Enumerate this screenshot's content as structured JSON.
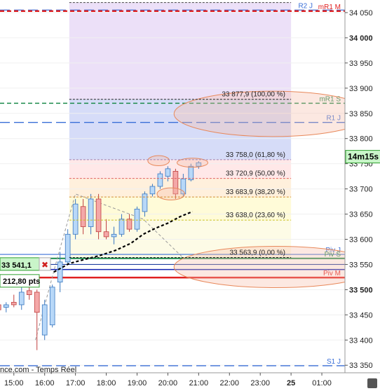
{
  "chart_data": {
    "type": "candlestick",
    "ylim": [
      33335,
      34075
    ],
    "y_ticks": [
      "34 050",
      "34 000",
      "33 950",
      "33 900",
      "33 850",
      "33 800",
      "33 750",
      "33 700",
      "33 650",
      "33 600",
      "33 550",
      "33 500",
      "33 450",
      "33 400",
      "33 350"
    ],
    "y_tick_values": [
      34050,
      34000,
      33950,
      33900,
      33850,
      33800,
      33750,
      33700,
      33650,
      33600,
      33550,
      33500,
      33450,
      33400,
      33350
    ],
    "x_ticks": [
      "15:00",
      "16:00",
      "17:00",
      "18:00",
      "19:00",
      "20:00",
      "21:00",
      "22:00",
      "23:00",
      "25",
      "01:00"
    ],
    "x_tick_values": [
      15,
      16,
      17,
      18,
      19,
      20,
      21,
      22,
      23,
      24,
      25
    ],
    "x_range": [
      14.55,
      25.75
    ],
    "candles": [
      {
        "t": 14.5,
        "o": 33470,
        "h": 33490,
        "l": 33445,
        "c": 33460
      },
      {
        "t": 14.75,
        "o": 33465,
        "h": 33475,
        "l": 33455,
        "c": 33470
      },
      {
        "t": 15.0,
        "o": 33475,
        "h": 33490,
        "l": 33465,
        "c": 33470
      },
      {
        "t": 15.25,
        "o": 33470,
        "h": 33505,
        "l": 33460,
        "c": 33495
      },
      {
        "t": 15.5,
        "o": 33498,
        "h": 33510,
        "l": 33480,
        "c": 33490
      },
      {
        "t": 15.75,
        "o": 33495,
        "h": 33500,
        "l": 33380,
        "c": 33455
      },
      {
        "t": 16.0,
        "o": 33410,
        "h": 33480,
        "l": 33400,
        "c": 33470
      },
      {
        "t": 16.25,
        "o": 33430,
        "h": 33510,
        "l": 33425,
        "c": 33505
      },
      {
        "t": 16.5,
        "o": 33515,
        "h": 33575,
        "l": 33495,
        "c": 33555
      },
      {
        "t": 16.75,
        "o": 33555,
        "h": 33620,
        "l": 33550,
        "c": 33610
      },
      {
        "t": 17.0,
        "o": 33610,
        "h": 33680,
        "l": 33600,
        "c": 33670
      },
      {
        "t": 17.25,
        "o": 33665,
        "h": 33680,
        "l": 33610,
        "c": 33625
      },
      {
        "t": 17.5,
        "o": 33625,
        "h": 33690,
        "l": 33610,
        "c": 33680
      },
      {
        "t": 17.75,
        "o": 33680,
        "h": 33690,
        "l": 33600,
        "c": 33615
      },
      {
        "t": 18.0,
        "o": 33615,
        "h": 33640,
        "l": 33600,
        "c": 33605
      },
      {
        "t": 18.25,
        "o": 33605,
        "h": 33625,
        "l": 33590,
        "c": 33610
      },
      {
        "t": 18.5,
        "o": 33610,
        "h": 33650,
        "l": 33605,
        "c": 33640
      },
      {
        "t": 18.75,
        "o": 33640,
        "h": 33650,
        "l": 33615,
        "c": 33620
      },
      {
        "t": 19.0,
        "o": 33620,
        "h": 33665,
        "l": 33615,
        "c": 33660
      },
      {
        "t": 19.25,
        "o": 33655,
        "h": 33695,
        "l": 33645,
        "c": 33690
      },
      {
        "t": 19.5,
        "o": 33690,
        "h": 33710,
        "l": 33685,
        "c": 33705
      },
      {
        "t": 19.75,
        "o": 33705,
        "h": 33735,
        "l": 33700,
        "c": 33730
      },
      {
        "t": 20.0,
        "o": 33725,
        "h": 33745,
        "l": 33715,
        "c": 33740
      },
      {
        "t": 20.25,
        "o": 33735,
        "h": 33740,
        "l": 33680,
        "c": 33690
      },
      {
        "t": 20.5,
        "o": 33690,
        "h": 33730,
        "l": 33685,
        "c": 33720
      },
      {
        "t": 20.75,
        "o": 33718,
        "h": 33750,
        "l": 33715,
        "c": 33745
      },
      {
        "t": 21.0,
        "o": 33745,
        "h": 33755,
        "l": 33740,
        "c": 33752
      }
    ],
    "fib_zone": {
      "t_start": 16.8,
      "t_end": 24.0
    },
    "fib_levels": [
      {
        "label": "33 877,9 (100,00 %)",
        "value": 33877.9,
        "color": "#222222",
        "fill": "#d6dcf8"
      },
      {
        "label": "33 758,0 (61,80 %)",
        "value": 33758.0,
        "color": "#a080b0",
        "fill": "#ffe8e8"
      },
      {
        "label": "33 720,9 (50,00 %)",
        "value": 33720.9,
        "color": "#e06060",
        "fill": "#fff0dc"
      },
      {
        "label": "33 683,9 (38,20 %)",
        "value": 33683.9,
        "color": "#d08a30",
        "fill": "#fffbd8"
      },
      {
        "label": "33 638,0 (23,60 %)",
        "value": 33638.0,
        "color": "#c8c020",
        "fill": "#fdfbe6"
      },
      {
        "label": "33 563,9 (0,00 %)",
        "value": 33563.9,
        "color": "#222222",
        "fill": ""
      }
    ],
    "fib_top_value": 34070,
    "levels": [
      {
        "label": "R2 J",
        "value": 34055,
        "color": "#3a6fd8",
        "style": "dash-long",
        "width": 1.3
      },
      {
        "label": "mR1 M",
        "value": 34053,
        "color": "#e02020",
        "style": "dash",
        "width": 2.4
      },
      {
        "label": "mR1 S",
        "value": 33870,
        "color": "#1a8a4a",
        "style": "dash",
        "width": 1.6
      },
      {
        "label": "R1 J",
        "value": 33832,
        "color": "#3a6fd8",
        "style": "dash-long",
        "width": 1.3
      },
      {
        "label": "Piv J",
        "value": 33570,
        "color": "#3a6fd8",
        "style": "solid",
        "width": 1.2
      },
      {
        "label": "Piv S",
        "value": 33562,
        "color": "#1a8a4a",
        "style": "solid",
        "width": 2
      },
      {
        "label": "",
        "value": 33550,
        "color": "#2040a0",
        "style": "solid",
        "width": 1.2
      },
      {
        "label": "",
        "value": 33540,
        "color": "#1020b0",
        "style": "solid",
        "width": 1.5
      },
      {
        "label": "Piv M",
        "value": 33524,
        "color": "#e02020",
        "style": "solid",
        "width": 2.5
      },
      {
        "label": "S1 J",
        "value": 33349,
        "color": "#3a6fd8",
        "style": "dash-long",
        "width": 1.3
      }
    ],
    "moving_average": [
      [
        16.3,
        33535
      ],
      [
        16.8,
        33552
      ],
      [
        17.3,
        33560
      ],
      [
        17.8,
        33568
      ],
      [
        18.3,
        33578
      ],
      [
        18.8,
        33592
      ],
      [
        19.2,
        33610
      ],
      [
        19.6,
        33622
      ],
      [
        20.0,
        33632
      ],
      [
        20.4,
        33645
      ],
      [
        20.8,
        33655
      ]
    ],
    "trend_lines": [
      {
        "points": [
          [
            16.4,
            33560
          ],
          [
            17.0,
            33690
          ],
          [
            19.2,
            33640
          ],
          [
            20.5,
            33563
          ]
        ],
        "color": "#999999"
      },
      {
        "points": [
          [
            15.7,
            33400
          ],
          [
            16.4,
            33560
          ]
        ],
        "color": "#999999"
      }
    ],
    "ellipses": [
      {
        "t": 19.7,
        "v": 33756,
        "rt": 0.35,
        "rv": 10
      },
      {
        "t": 20.8,
        "v": 33752,
        "rt": 0.5,
        "rv": 9
      },
      {
        "t": 20.1,
        "v": 33690,
        "rt": 0.45,
        "rv": 12
      },
      {
        "t": 23.4,
        "v": 33849,
        "rt": 3.2,
        "rv": 45
      },
      {
        "t": 23.5,
        "v": 33545,
        "rt": 3.3,
        "rv": 41
      }
    ],
    "current_price_label": "33 541,1",
    "current_price_value": 33541.1,
    "close_symbol": "✖",
    "pts_label": "212,80 pts",
    "countdown_label": "14m15s",
    "countdown_value": 33764,
    "watermark": "nce.com - Temps Réel",
    "colors": {
      "bull_fill": "#b8d8f8",
      "bull_border": "#3a78c0",
      "bear_fill": "#f4a8a8",
      "bear_border": "#c04040",
      "zone_top": "#ece0f8",
      "ellipse_fill": "rgba(245,190,170,0.35)",
      "ellipse_stroke": "#e8885a",
      "countdown_bg": "#c9f5c9",
      "countdown_border": "#30a030",
      "price_box_bg": "#c9f5c9",
      "price_box_border": "#30a030"
    }
  }
}
